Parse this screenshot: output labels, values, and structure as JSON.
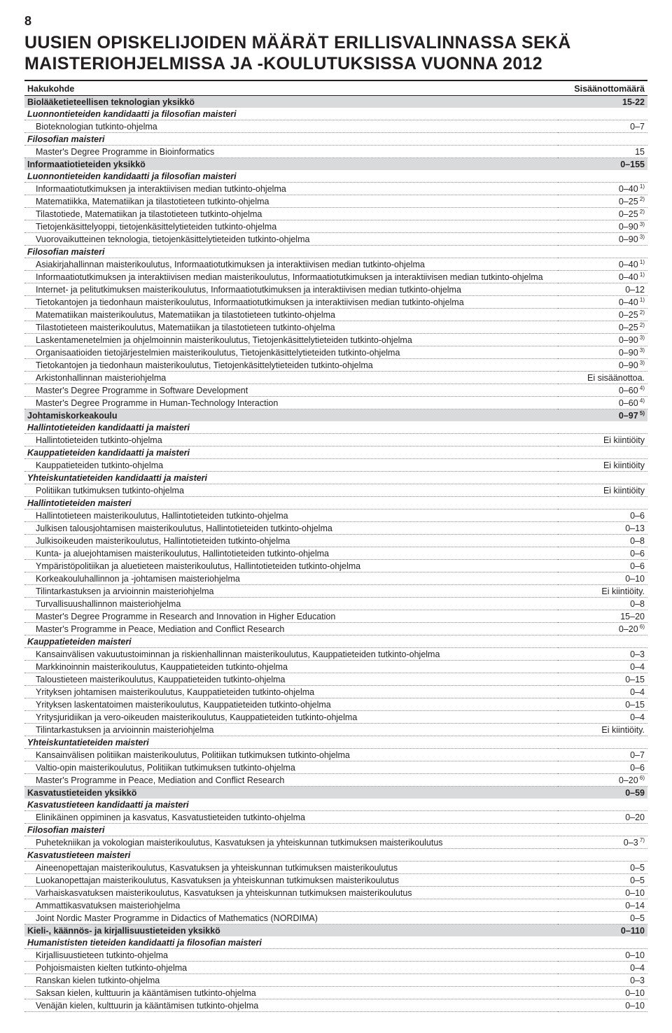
{
  "page_number": "8",
  "title": "UUSIEN OPISKELIJOIDEN MÄÄRÄT ERILLISVALINNASSA SEKÄ MAISTERIOHJELMISSA JA -KOULUTUKSISSA VUONNA 2012",
  "header": {
    "col1": "Hakukohde",
    "col2": "Sisäänottomäärä"
  },
  "rows": [
    {
      "t": "section",
      "label": "Biolääketieteellisen teknologian yksikkö",
      "value": "15-22"
    },
    {
      "t": "group",
      "label": "Luonnontieteiden kandidaatti ja filosofian maisteri",
      "value": ""
    },
    {
      "t": "item",
      "label": "Bioteknologian tutkinto-ohjelma",
      "value": "0–7"
    },
    {
      "t": "group",
      "label": "Filosofian maisteri",
      "value": ""
    },
    {
      "t": "item",
      "label": "Master's Degree Programme in Bioinformatics",
      "value": "15"
    },
    {
      "t": "section",
      "label": "Informaatiotieteiden yksikkö",
      "value": "0–155"
    },
    {
      "t": "group",
      "label": "Luonnontieteiden kandidaatti ja filosofian maisteri",
      "value": ""
    },
    {
      "t": "item",
      "label": "Informaatiotutkimuksen ja interaktiivisen median tutkinto-ohjelma",
      "value": "0–40",
      "sup": "1)"
    },
    {
      "t": "item",
      "label": "Matematiikka, Matematiikan ja tilastotieteen tutkinto-ohjelma",
      "value": "0–25",
      "sup": "2)"
    },
    {
      "t": "item",
      "label": "Tilastotiede, Matematiikan ja tilastotieteen tutkinto-ohjelma",
      "value": "0–25",
      "sup": "2)"
    },
    {
      "t": "item",
      "label": "Tietojenkäsittelyoppi, tietojenkäsittelytieteiden tutkinto-ohjelma",
      "value": "0–90",
      "sup": "3)"
    },
    {
      "t": "item",
      "label": "Vuorovaikutteinen teknologia, tietojenkäsittelytieteiden tutkinto-ohjelma",
      "value": "0–90",
      "sup": "3)"
    },
    {
      "t": "group",
      "label": "Filosofian maisteri",
      "value": ""
    },
    {
      "t": "item",
      "label": "Asiakirjahallinnan maisterikoulutus, Informaatiotutkimuksen ja interaktiivisen median tutkinto-ohjelma",
      "value": "0–40",
      "sup": "1)"
    },
    {
      "t": "item",
      "label": "Informaatiotutkimuksen ja interaktiivisen median maisterikoulutus, Informaatiotutkimuksen ja interaktiivisen median tutkinto-ohjelma",
      "value": "0–40",
      "sup": "1)"
    },
    {
      "t": "item",
      "label": "Internet- ja pelitutkimuksen maisterikoulutus, Informaatiotutkimuksen ja interaktiivisen median tutkinto-ohjelma",
      "value": "0–12"
    },
    {
      "t": "item",
      "label": "Tietokantojen ja tiedonhaun maisterikoulutus, Informaatiotutkimuksen ja interaktiivisen median tutkinto-ohjelma",
      "value": "0–40",
      "sup": "1)"
    },
    {
      "t": "item",
      "label": "Matematiikan maisterikoulutus, Matematiikan ja tilastotieteen tutkinto-ohjelma",
      "value": "0–25",
      "sup": "2)"
    },
    {
      "t": "item",
      "label": "Tilastotieteen maisterikoulutus, Matematiikan ja tilastotieteen tutkinto-ohjelma",
      "value": "0–25",
      "sup": "2)"
    },
    {
      "t": "item",
      "label": "Laskentamenetelmien ja ohjelmoinnin maisterikoulutus, Tietojenkäsittelytieteiden tutkinto-ohjelma",
      "value": "0–90",
      "sup": "3)"
    },
    {
      "t": "item",
      "label": "Organisaatioiden tietojärjestelmien maisterikoulutus, Tietojenkäsittelytieteiden tutkinto-ohjelma",
      "value": "0–90",
      "sup": "3)"
    },
    {
      "t": "item",
      "label": "Tietokantojen ja tiedonhaun maisterikoulutus, Tietojenkäsittelytieteiden tutkinto-ohjelma",
      "value": "0–90",
      "sup": "3)"
    },
    {
      "t": "item",
      "label": "Arkistonhallinnan maisteriohjelma",
      "value": "Ei sisäänottoa."
    },
    {
      "t": "item",
      "label": "Master's Degree Programme in Software Development",
      "value": "0–60",
      "sup": "4)"
    },
    {
      "t": "item",
      "label": "Master's Degree Programme in Human-Technology Interaction",
      "value": "0–60",
      "sup": "4)"
    },
    {
      "t": "section",
      "label": "Johtamiskorkeakoulu",
      "value": "0–97",
      "sup": "5)"
    },
    {
      "t": "group",
      "label": "Hallintotieteiden kandidaatti ja maisteri",
      "value": ""
    },
    {
      "t": "item",
      "label": "Hallintotieteiden tutkinto-ohjelma",
      "value": "Ei kiintiöity"
    },
    {
      "t": "group",
      "label": "Kauppatieteiden kandidaatti ja maisteri",
      "value": ""
    },
    {
      "t": "item",
      "label": "Kauppatieteiden tutkinto-ohjelma",
      "value": "Ei kiintiöity"
    },
    {
      "t": "group",
      "label": "Yhteiskuntatieteiden kandidaatti ja maisteri",
      "value": ""
    },
    {
      "t": "item",
      "label": "Politiikan tutkimuksen tutkinto-ohjelma",
      "value": "Ei kiintiöity"
    },
    {
      "t": "group",
      "label": "Hallintotieteiden maisteri",
      "value": ""
    },
    {
      "t": "item",
      "label": "Hallintotieteen maisterikoulutus, Hallintotieteiden tutkinto-ohjelma",
      "value": "0–6"
    },
    {
      "t": "item",
      "label": "Julkisen talousjohtamisen maisterikoulutus, Hallintotieteiden tutkinto-ohjelma",
      "value": "0–13"
    },
    {
      "t": "item",
      "label": "Julkisoikeuden maisterikoulutus, Hallintotieteiden tutkinto-ohjelma",
      "value": "0–8"
    },
    {
      "t": "item",
      "label": "Kunta- ja aluejohtamisen maisterikoulutus, Hallintotieteiden tutkinto-ohjelma",
      "value": "0–6"
    },
    {
      "t": "item",
      "label": "Ympäristöpolitiikan ja aluetieteen maisterikoulutus, Hallintotieteiden tutkinto-ohjelma",
      "value": "0–6"
    },
    {
      "t": "item",
      "label": "Korkeakouluhallinnon ja -johtamisen maisteriohjelma",
      "value": "0–10"
    },
    {
      "t": "item",
      "label": "Tilintarkastuksen ja arvioinnin maisteriohjelma",
      "value": "Ei kiintiöity."
    },
    {
      "t": "item",
      "label": "Turvallisuushallinnon maisteriohjelma",
      "value": "0–8"
    },
    {
      "t": "item",
      "label": "Master's Degree Programme in Research and Innovation in Higher Education",
      "value": "15–20"
    },
    {
      "t": "item",
      "label": "Master's Programme in Peace, Mediation and Conflict Research",
      "value": "0–20",
      "sup": "6)"
    },
    {
      "t": "group",
      "label": "Kauppatieteiden maisteri",
      "value": ""
    },
    {
      "t": "item",
      "label": "Kansainvälisen vakuutustoiminnan ja riskienhallinnan maisterikoulutus, Kauppatieteiden tutkinto-ohjelma",
      "value": "0–3"
    },
    {
      "t": "item",
      "label": "Markkinoinnin maisterikoulutus, Kauppatieteiden tutkinto-ohjelma",
      "value": "0–4"
    },
    {
      "t": "item",
      "label": "Taloustieteen maisterikoulutus, Kauppatieteiden tutkinto-ohjelma",
      "value": "0–15"
    },
    {
      "t": "item",
      "label": "Yrityksen johtamisen maisterikoulutus, Kauppatieteiden tutkinto-ohjelma",
      "value": "0–4"
    },
    {
      "t": "item",
      "label": "Yrityksen laskentatoimen maisterikoulutus, Kauppatieteiden tutkinto-ohjelma",
      "value": "0–15"
    },
    {
      "t": "item",
      "label": "Yritysjuridiikan ja vero-oikeuden maisterikoulutus, Kauppatieteiden tutkinto-ohjelma",
      "value": "0–4"
    },
    {
      "t": "item",
      "label": "Tilintarkastuksen ja arvioinnin maisteriohjelma",
      "value": "Ei kiintiöity."
    },
    {
      "t": "group",
      "label": "Yhteiskuntatieteiden maisteri",
      "value": ""
    },
    {
      "t": "item",
      "label": "Kansainvälisen politiikan maisterikoulutus, Politiikan tutkimuksen tutkinto-ohjelma",
      "value": "0–7"
    },
    {
      "t": "item",
      "label": "Valtio-opin maisterikoulutus, Politiikan tutkimuksen tutkinto-ohjelma",
      "value": "0–6"
    },
    {
      "t": "item",
      "label": "Master's Programme in Peace, Mediation and Conflict Research",
      "value": "0–20",
      "sup": "6)"
    },
    {
      "t": "section",
      "label": "Kasvatustieteiden yksikkö",
      "value": "0–59"
    },
    {
      "t": "group",
      "label": "Kasvatustieteen kandidaatti ja maisteri",
      "value": ""
    },
    {
      "t": "item",
      "label": "Elinikäinen oppiminen ja kasvatus, Kasvatustieteiden tutkinto-ohjelma",
      "value": "0–20"
    },
    {
      "t": "group",
      "label": "Filosofian maisteri",
      "value": ""
    },
    {
      "t": "item",
      "label": "Puhetekniikan ja vokologian maisterikoulutus, Kasvatuksen ja yhteiskunnan tutkimuksen maisterikoulutus",
      "value": "0–3",
      "sup": "7)"
    },
    {
      "t": "group",
      "label": "Kasvatustieteen maisteri",
      "value": ""
    },
    {
      "t": "item",
      "label": "Aineenopettajan maisterikoulutus, Kasvatuksen ja yhteiskunnan tutkimuksen maisterikoulutus",
      "value": "0–5"
    },
    {
      "t": "item",
      "label": "Luokanopettajan maisterikoulutus, Kasvatuksen ja yhteiskunnan tutkimuksen maisterikoulutus",
      "value": "0–5"
    },
    {
      "t": "item",
      "label": "Varhaiskasvatuksen maisterikoulutus, Kasvatuksen ja yhteiskunnan tutkimuksen maisterikoulutus",
      "value": "0–10"
    },
    {
      "t": "item",
      "label": "Ammattikasvatuksen maisteriohjelma",
      "value": "0–14"
    },
    {
      "t": "item",
      "label": "Joint Nordic Master Programme in Didactics of Mathematics (NORDIMA)",
      "value": "0–5"
    },
    {
      "t": "section",
      "label": "Kieli-, käännös- ja kirjallisuustieteiden yksikkö",
      "value": "0–110"
    },
    {
      "t": "group",
      "label": "Humanististen tieteiden kandidaatti ja filosofian maisteri",
      "value": ""
    },
    {
      "t": "item",
      "label": "Kirjallisuustieteen tutkinto-ohjelma",
      "value": "0–10"
    },
    {
      "t": "item",
      "label": "Pohjoismaisten kielten tutkinto-ohjelma",
      "value": "0–4"
    },
    {
      "t": "item",
      "label": "Ranskan kielen tutkinto-ohjelma",
      "value": "0–3"
    },
    {
      "t": "item",
      "label": "Saksan kielen, kulttuurin ja kääntämisen tutkinto-ohjelma",
      "value": "0–10"
    },
    {
      "t": "item",
      "label": "Venäjän kielen, kulttuurin ja kääntämisen tutkinto-ohjelma",
      "value": "0–10"
    }
  ]
}
